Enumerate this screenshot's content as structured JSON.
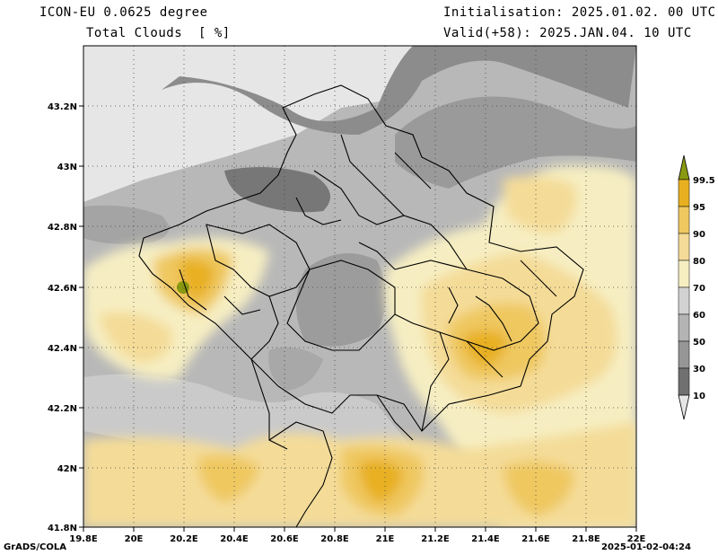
{
  "header": {
    "model": "ICON-EU 0.0625 degree",
    "variable": "Total Clouds  [ %]",
    "initialisation": "Initialisation: 2025.01.02. 00 UTC",
    "valid": "Valid(+58): 2025.JAN.04. 10 UTC"
  },
  "axes": {
    "lon_labels": [
      "19.8E",
      "20E",
      "20.2E",
      "20.4E",
      "20.6E",
      "20.8E",
      "21E",
      "21.2E",
      "21.4E",
      "21.6E",
      "21.8E",
      "22E"
    ],
    "lat_labels": [
      "43.2N",
      "43N",
      "42.8N",
      "42.6N",
      "42.4N",
      "42.2N",
      "42N",
      "41.8N"
    ]
  },
  "legend": {
    "levels": [
      "99.5",
      "95",
      "90",
      "80",
      "70",
      "60",
      "50",
      "30",
      "10"
    ],
    "colors": {
      "99.5": "#8a9a10",
      "95": "#e8b020",
      "90": "#efc860",
      "80": "#f4dc98",
      "70": "#f6eec2",
      "60": "#d2d2d2",
      "50": "#b4b4b4",
      "30": "#969696",
      "10": "#707070",
      "below": "#e6e6e6"
    }
  },
  "footer": {
    "left": "GrADS/COLA",
    "right": "2025-01-02-04:24"
  }
}
